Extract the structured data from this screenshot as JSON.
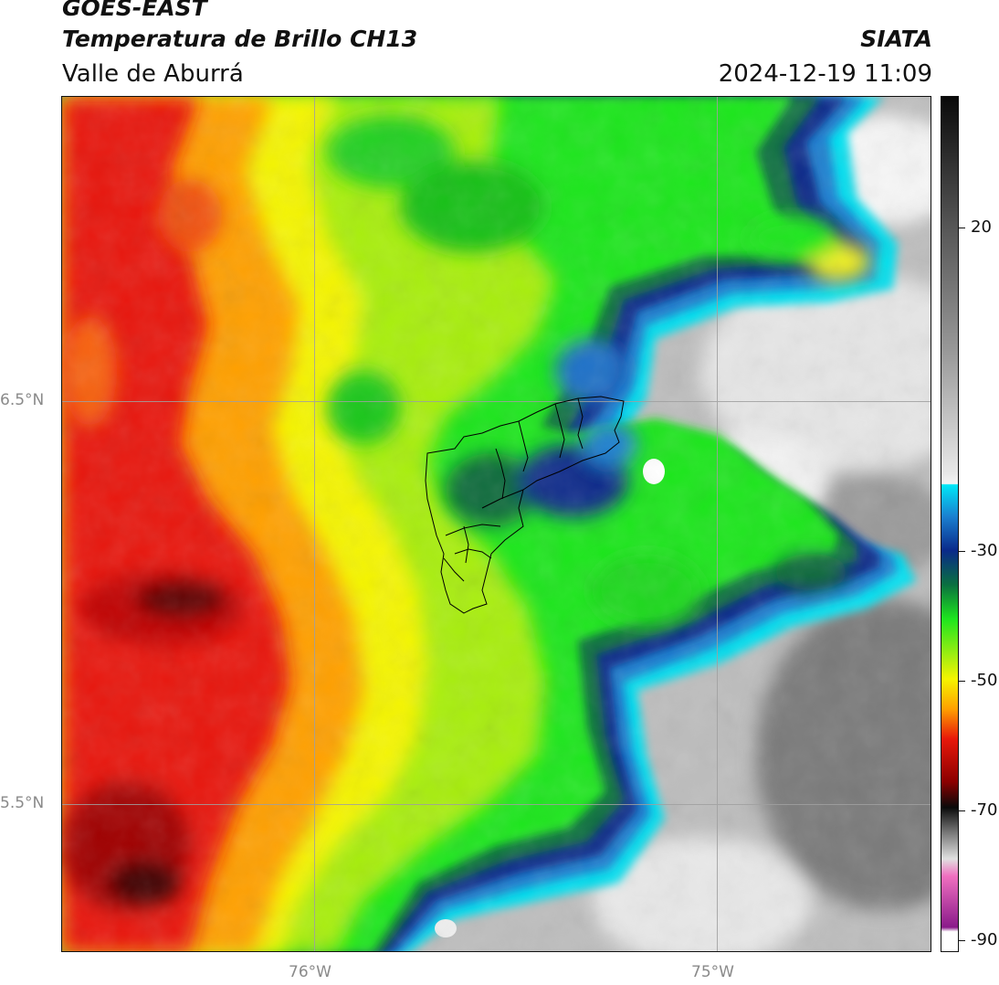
{
  "header": {
    "satellite": "GOES-EAST",
    "product": "Temperatura de Brillo CH13",
    "region": "Valle de Aburrá",
    "organization": "SIATA",
    "timestamp": "2024-12-19 11:09"
  },
  "map": {
    "latitude_labels": [
      "6.5°N",
      "5.5°N"
    ],
    "longitude_labels": [
      "76°W",
      "75°W"
    ],
    "gridline_color": "#a0a0a0",
    "overlay": "Valle de Aburrá municipal boundaries"
  },
  "colorbar": {
    "tick_labels": [
      "20",
      "-30",
      "-50",
      "-70",
      "-90"
    ],
    "palette": {
      "very_cold": "#8a1a8a",
      "cold_gray": "#9a9a9a",
      "black": "#0a0a0a",
      "dark_red": "#8b0000",
      "red": "#e8180a",
      "orange": "#ff8c00",
      "yellow": "#f5f500",
      "green": "#1ee61e",
      "dark_green": "#0a6a3a",
      "navy": "#0a2a8a",
      "blue": "#1a70c8",
      "cyan": "#00e0f0",
      "light_gray": "#f0f0f0",
      "warm_black": "#111111"
    }
  }
}
